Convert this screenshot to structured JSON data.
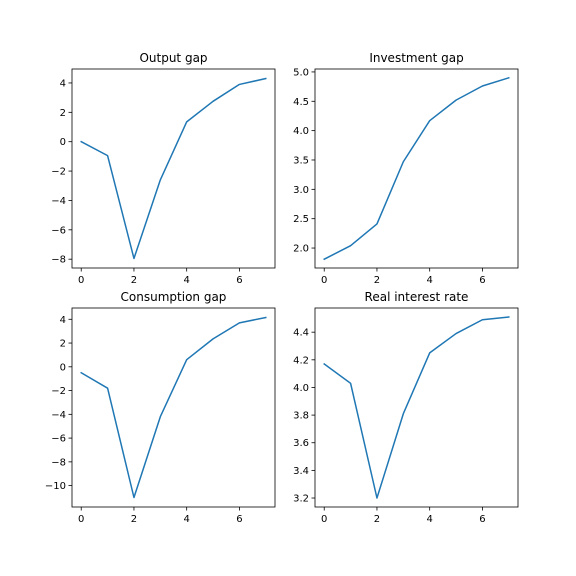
{
  "chart_data": [
    {
      "type": "line",
      "title": "Output gap",
      "x": [
        0,
        1,
        2,
        3,
        4,
        5,
        6,
        7
      ],
      "values": [
        0.0,
        -0.95,
        -7.95,
        -2.6,
        1.35,
        2.75,
        3.9,
        4.3
      ],
      "xlim": [
        -0.35,
        7.35
      ],
      "ylim": [
        -8.6,
        4.95
      ],
      "xticks": [
        0,
        2,
        4,
        6
      ],
      "yticks": [
        -8,
        -6,
        -4,
        -2,
        0,
        2,
        4
      ],
      "xtick_labels": [
        "0",
        "2",
        "4",
        "6"
      ],
      "ytick_labels": [
        "−8",
        "−6",
        "−4",
        "−2",
        "0",
        "2",
        "4"
      ],
      "color": "#1f77b4"
    },
    {
      "type": "line",
      "title": "Investment gap",
      "x": [
        0,
        1,
        2,
        3,
        4,
        5,
        6,
        7
      ],
      "values": [
        1.81,
        2.04,
        2.41,
        3.47,
        4.17,
        4.52,
        4.76,
        4.9
      ],
      "xlim": [
        -0.35,
        7.35
      ],
      "ylim": [
        1.66,
        5.05
      ],
      "xticks": [
        0,
        2,
        4,
        6
      ],
      "yticks": [
        2.0,
        2.5,
        3.0,
        3.5,
        4.0,
        4.5,
        5.0
      ],
      "xtick_labels": [
        "0",
        "2",
        "4",
        "6"
      ],
      "ytick_labels": [
        "2.0",
        "2.5",
        "3.0",
        "3.5",
        "4.0",
        "4.5",
        "5.0"
      ],
      "color": "#1f77b4"
    },
    {
      "type": "line",
      "title": "Consumption gap",
      "x": [
        0,
        1,
        2,
        3,
        4,
        5,
        6,
        7
      ],
      "values": [
        -0.5,
        -1.8,
        -11.0,
        -4.2,
        0.6,
        2.35,
        3.7,
        4.15
      ],
      "xlim": [
        -0.35,
        7.35
      ],
      "ylim": [
        -11.8,
        4.95
      ],
      "xticks": [
        0,
        2,
        4,
        6
      ],
      "yticks": [
        -10,
        -8,
        -6,
        -4,
        -2,
        0,
        2,
        4
      ],
      "xtick_labels": [
        "0",
        "2",
        "4",
        "6"
      ],
      "ytick_labels": [
        "−10",
        "−8",
        "−6",
        "−4",
        "−2",
        "0",
        "2",
        "4"
      ],
      "color": "#1f77b4"
    },
    {
      "type": "line",
      "title": "Real interest rate",
      "x": [
        0,
        1,
        2,
        3,
        4,
        5,
        6,
        7
      ],
      "values": [
        4.17,
        4.03,
        3.2,
        3.81,
        4.25,
        4.39,
        4.49,
        4.51
      ],
      "xlim": [
        -0.35,
        7.35
      ],
      "ylim": [
        3.135,
        4.575
      ],
      "xticks": [
        0,
        2,
        4,
        6
      ],
      "yticks": [
        3.2,
        3.4,
        3.6,
        3.8,
        4.0,
        4.2,
        4.4
      ],
      "xtick_labels": [
        "0",
        "2",
        "4",
        "6"
      ],
      "ytick_labels": [
        "3.2",
        "3.4",
        "3.6",
        "3.8",
        "4.0",
        "4.2",
        "4.4"
      ],
      "color": "#1f77b4"
    }
  ]
}
